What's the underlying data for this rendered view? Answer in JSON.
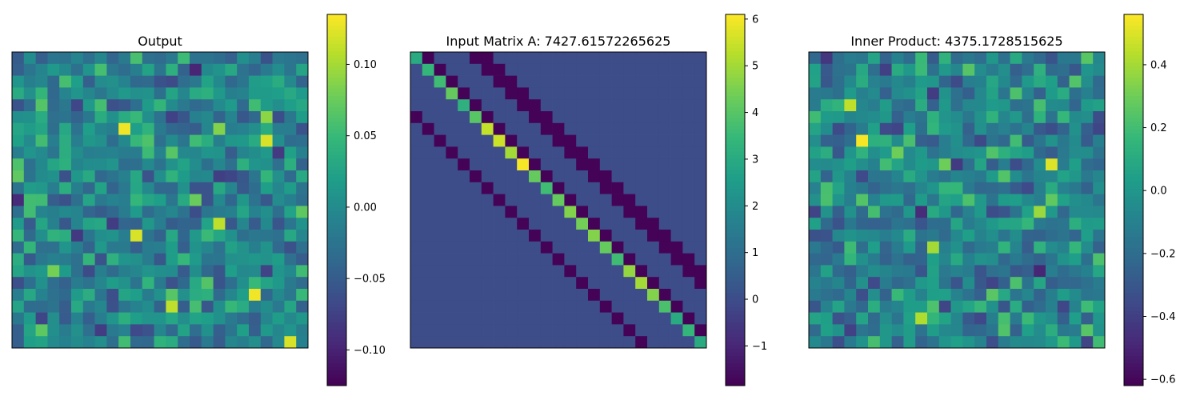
{
  "chart_data": [
    {
      "type": "heatmap",
      "title": "Output",
      "rows": 25,
      "cols": 25,
      "colormap": "viridis",
      "vmin": -0.125,
      "vmax": 0.135,
      "colorbar_ticks": [
        0.1,
        0.05,
        0.0,
        -0.05,
        -0.1
      ],
      "colorbar_tick_labels": [
        "0.10",
        "0.05",
        "0.00",
        "−0.05",
        "−0.10"
      ],
      "pattern": "noise",
      "seed": 11,
      "hot_cells": [
        [
          6,
          0.13
        ],
        [
          7,
          0.12
        ],
        [
          5,
          0.09
        ],
        [
          10,
          0.07
        ],
        [
          14,
          0.11
        ],
        [
          15,
          0.12
        ],
        [
          18,
          0.08
        ],
        [
          20,
          0.13
        ],
        [
          21,
          0.11
        ],
        [
          24,
          0.12
        ]
      ]
    },
    {
      "type": "heatmap",
      "title": "Input Matrix A: 7427.61572265625",
      "rows": 25,
      "cols": 25,
      "colormap": "viridis",
      "vmin": -1.85,
      "vmax": 6.1,
      "colorbar_ticks": [
        6,
        5,
        4,
        3,
        2,
        1,
        0,
        -1
      ],
      "colorbar_tick_labels": [
        "6",
        "5",
        "4",
        "3",
        "2",
        "1",
        "0",
        "−1"
      ],
      "pattern": "banded",
      "background": 0,
      "off_diagonal_value": -1.8,
      "off_diagonal_offsets": [
        1,
        5,
        -5,
        6
      ],
      "diagonal": [
        3.0,
        3.4,
        3.6,
        4.2,
        3.2,
        4.0,
        5.4,
        5.5,
        5.0,
        6.0,
        4.2,
        3.6,
        4.2,
        4.6,
        4.4,
        4.6,
        4.2,
        3.6,
        4.8,
        5.0,
        4.6,
        3.8,
        3.0,
        3.4,
        3.0
      ]
    },
    {
      "type": "heatmap",
      "title": "Inner Product: 4375.1728515625",
      "rows": 25,
      "cols": 25,
      "colormap": "viridis",
      "vmin": -0.62,
      "vmax": 0.56,
      "colorbar_ticks": [
        0.4,
        0.2,
        0.0,
        -0.2,
        -0.4,
        -0.6
      ],
      "colorbar_tick_labels": [
        "0.4",
        "0.2",
        "0.0",
        "−0.2",
        "−0.4",
        "−0.6"
      ],
      "pattern": "noise",
      "seed": 37,
      "hot_cells": [
        [
          7,
          0.55
        ],
        [
          9,
          0.5
        ],
        [
          4,
          0.45
        ],
        [
          16,
          0.4
        ],
        [
          22,
          0.42
        ],
        [
          13,
          0.38
        ]
      ]
    }
  ]
}
